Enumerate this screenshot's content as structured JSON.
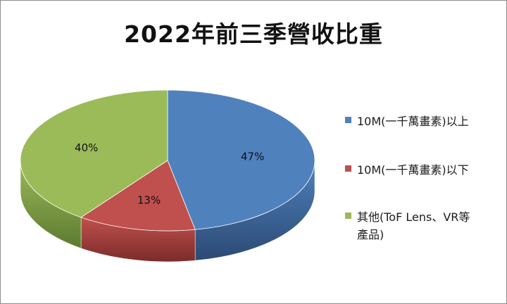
{
  "chart_data": {
    "type": "pie",
    "title": "2022年前三季營收比重",
    "categories": [
      "10M(一千萬畫素)以上",
      "10M(一千萬畫素)以下",
      "其他(ToF Lens、VR等產品)"
    ],
    "values": [
      47,
      13,
      40
    ],
    "value_labels": [
      "47%",
      "13%",
      "40%"
    ],
    "colors": [
      "#4f81bd",
      "#c0504d",
      "#9bbb59"
    ],
    "dark_colors": [
      "#2c4a74",
      "#7b2c2a",
      "#5d7a30"
    ],
    "legend_position": "right",
    "legend": [
      {
        "lines": [
          "10M(一千萬畫素)以上"
        ],
        "color": "#4f81bd"
      },
      {
        "lines": [
          "10M(一千萬畫素)以下"
        ],
        "color": "#c0504d"
      },
      {
        "lines": [
          "其他(ToF Lens、VR等",
          "產品)"
        ],
        "color": "#9bbb59"
      }
    ]
  }
}
